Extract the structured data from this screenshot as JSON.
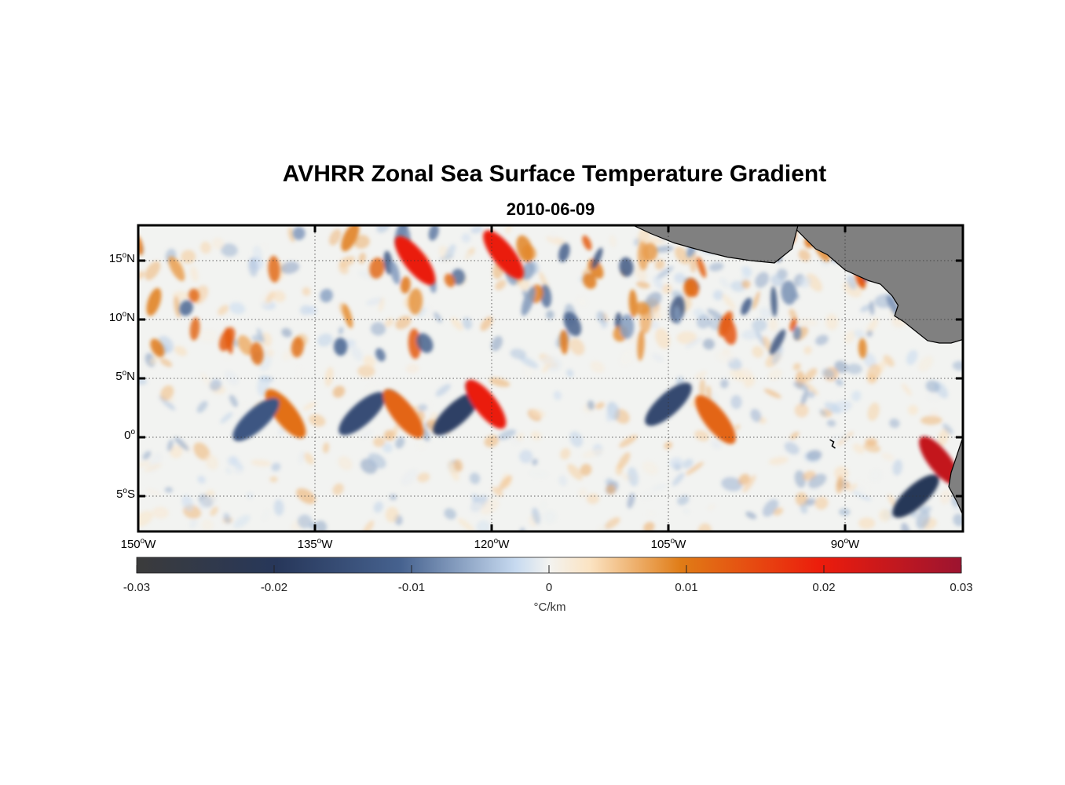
{
  "title": "AVHRR Zonal Sea Surface Temperature Gradient",
  "subtitle": "2010-06-09",
  "map": {
    "region_lon": [
      -150,
      -80
    ],
    "region_lat": [
      -8,
      18
    ],
    "land_color": "#808080",
    "coastline_color": "#000000",
    "grid": "dotted",
    "lat_ticks": [
      {
        "value": 15,
        "deg": "15",
        "hem": "N"
      },
      {
        "value": 10,
        "deg": "10",
        "hem": "N"
      },
      {
        "value": 5,
        "deg": "5",
        "hem": "N"
      },
      {
        "value": 0,
        "deg": "0",
        "hem": ""
      },
      {
        "value": -5,
        "deg": "5",
        "hem": "S"
      }
    ],
    "lon_ticks": [
      {
        "value": -150,
        "deg": "150",
        "hem": "W"
      },
      {
        "value": -135,
        "deg": "135",
        "hem": "W"
      },
      {
        "value": -120,
        "deg": "120",
        "hem": "W"
      },
      {
        "value": -105,
        "deg": "105",
        "hem": "W"
      },
      {
        "value": -90,
        "deg": "90",
        "hem": "W"
      }
    ]
  },
  "colorbar": {
    "min": -0.03,
    "max": 0.03,
    "ticks": [
      "-0.03",
      "-0.02",
      "-0.01",
      "0",
      "0.01",
      "0.02",
      "0.03"
    ],
    "unit_symbol": "°",
    "unit_text": "C/km",
    "colors": [
      "#3b3b3b",
      "#27375a",
      "#46628f",
      "#c7daf0",
      "#f3f3f0",
      "#fbe3c2",
      "#e07c16",
      "#ec1c0c",
      "#9c1430"
    ]
  },
  "features": [
    {
      "lon": -137.5,
      "lat": 2,
      "value": 0.011,
      "desc": ""
    },
    {
      "lon": -140,
      "lat": 1.5,
      "value": -0.013,
      "desc": ""
    },
    {
      "lon": -131,
      "lat": 2,
      "value": -0.015,
      "desc": ""
    },
    {
      "lon": -127.5,
      "lat": 2,
      "value": 0.012,
      "desc": ""
    },
    {
      "lon": -123,
      "lat": 2,
      "value": -0.018,
      "desc": ""
    },
    {
      "lon": -120.5,
      "lat": 2.8,
      "value": 0.02,
      "desc": ""
    },
    {
      "lon": -105,
      "lat": 2.8,
      "value": -0.016,
      "desc": ""
    },
    {
      "lon": -101,
      "lat": 1.5,
      "value": 0.012,
      "desc": ""
    },
    {
      "lon": -82,
      "lat": -2,
      "value": 0.025,
      "desc": ""
    },
    {
      "lon": -84,
      "lat": -5,
      "value": -0.02,
      "desc": ""
    },
    {
      "lon": -119,
      "lat": 15.5,
      "value": 0.02,
      "desc": ""
    },
    {
      "lon": -126.5,
      "lat": 15,
      "value": 0.02,
      "desc": ""
    }
  ]
}
